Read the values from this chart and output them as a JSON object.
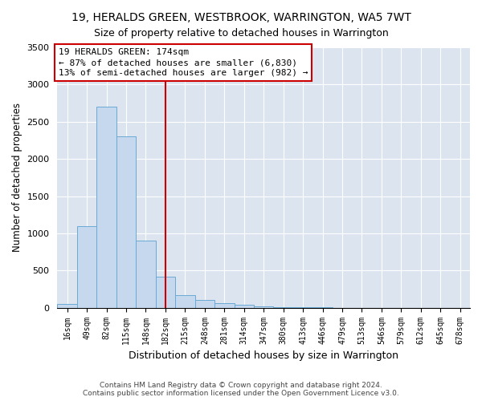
{
  "title": "19, HERALDS GREEN, WESTBROOK, WARRINGTON, WA5 7WT",
  "subtitle": "Size of property relative to detached houses in Warrington",
  "xlabel": "Distribution of detached houses by size in Warrington",
  "ylabel": "Number of detached properties",
  "categories": [
    "16sqm",
    "49sqm",
    "82sqm",
    "115sqm",
    "148sqm",
    "182sqm",
    "215sqm",
    "248sqm",
    "281sqm",
    "314sqm",
    "347sqm",
    "380sqm",
    "413sqm",
    "446sqm",
    "479sqm",
    "513sqm",
    "546sqm",
    "579sqm",
    "612sqm",
    "645sqm",
    "678sqm"
  ],
  "values": [
    50,
    1100,
    2700,
    2300,
    900,
    420,
    170,
    100,
    58,
    40,
    20,
    10,
    5,
    3,
    2,
    1,
    0,
    0,
    0,
    0,
    0
  ],
  "bar_color": "#c5d8ee",
  "bar_edge_color": "#6aaad4",
  "vline_idx": 5,
  "vline_color": "#cc0000",
  "annotation_line1": "19 HERALDS GREEN: 174sqm",
  "annotation_line2": "← 87% of detached houses are smaller (6,830)",
  "annotation_line3": "13% of semi-detached houses are larger (982) →",
  "ann_box_edge": "#cc0000",
  "ylim": [
    0,
    3500
  ],
  "yticks": [
    0,
    500,
    1000,
    1500,
    2000,
    2500,
    3000,
    3500
  ],
  "grid_color": "#ffffff",
  "bg_color": "#dce4f0",
  "title_fontsize": 10,
  "subtitle_fontsize": 9,
  "footer1": "Contains HM Land Registry data © Crown copyright and database right 2024.",
  "footer2": "Contains public sector information licensed under the Open Government Licence v3.0."
}
